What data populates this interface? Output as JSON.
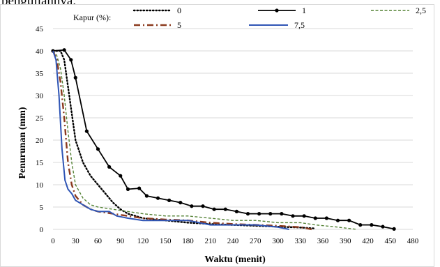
{
  "caption_fragment": "pengujiannya.",
  "chart_data": {
    "type": "line",
    "xlabel": "Waktu (menit)",
    "ylabel": "Penurunan (mm)",
    "xlim": [
      0,
      480
    ],
    "ylim": [
      0,
      45
    ],
    "x_ticks": [
      "0",
      "30",
      "60",
      "90",
      "120",
      "150",
      "180",
      "210",
      "240",
      "270",
      "300",
      "330",
      "360",
      "390",
      "420",
      "450",
      "480"
    ],
    "y_ticks": [
      "0",
      "5",
      "10",
      "15",
      "20",
      "25",
      "30",
      "35",
      "40",
      "45"
    ],
    "grid": "horizontal",
    "legend_title": "Kapur (%):",
    "legend_position": "top",
    "series": [
      {
        "name": "0",
        "color": "#000000",
        "style": "dotted",
        "points": [
          [
            0,
            40
          ],
          [
            10,
            40
          ],
          [
            15,
            38
          ],
          [
            20,
            32
          ],
          [
            25,
            26
          ],
          [
            30,
            20
          ],
          [
            40,
            15
          ],
          [
            50,
            12
          ],
          [
            60,
            10
          ],
          [
            70,
            8
          ],
          [
            80,
            6
          ],
          [
            90,
            4.5
          ],
          [
            100,
            3.5
          ],
          [
            120,
            2.5
          ],
          [
            150,
            2
          ],
          [
            180,
            1.5
          ],
          [
            210,
            1.2
          ],
          [
            240,
            1
          ],
          [
            270,
            0.8
          ],
          [
            300,
            0.6
          ],
          [
            330,
            0.4
          ],
          [
            350,
            0.2
          ]
        ]
      },
      {
        "name": "1",
        "color": "#000000",
        "style": "solid-markers",
        "points": [
          [
            0,
            40
          ],
          [
            15,
            40.2
          ],
          [
            24,
            38
          ],
          [
            30,
            34
          ],
          [
            45,
            22
          ],
          [
            60,
            18
          ],
          [
            75,
            14
          ],
          [
            90,
            12
          ],
          [
            100,
            9
          ],
          [
            115,
            9.2
          ],
          [
            125,
            7.5
          ],
          [
            140,
            7
          ],
          [
            155,
            6.5
          ],
          [
            170,
            6
          ],
          [
            185,
            5.2
          ],
          [
            200,
            5.2
          ],
          [
            215,
            4.5
          ],
          [
            230,
            4.5
          ],
          [
            245,
            4
          ],
          [
            260,
            3.5
          ],
          [
            275,
            3.5
          ],
          [
            290,
            3.5
          ],
          [
            305,
            3.5
          ],
          [
            320,
            3
          ],
          [
            335,
            3
          ],
          [
            350,
            2.5
          ],
          [
            365,
            2.5
          ],
          [
            380,
            2
          ],
          [
            395,
            2
          ],
          [
            410,
            1
          ],
          [
            425,
            1
          ],
          [
            440,
            0.6
          ],
          [
            455,
            0.1
          ]
        ]
      },
      {
        "name": "2,5",
        "color": "#548235",
        "style": "dashed",
        "points": [
          [
            0,
            40
          ],
          [
            5,
            39
          ],
          [
            10,
            36
          ],
          [
            15,
            30
          ],
          [
            20,
            22
          ],
          [
            25,
            15
          ],
          [
            30,
            10
          ],
          [
            40,
            7
          ],
          [
            50,
            5.5
          ],
          [
            60,
            5
          ],
          [
            80,
            4.5
          ],
          [
            100,
            4
          ],
          [
            120,
            3.5
          ],
          [
            150,
            3
          ],
          [
            180,
            3
          ],
          [
            210,
            2.5
          ],
          [
            240,
            2
          ],
          [
            270,
            2
          ],
          [
            300,
            1.5
          ],
          [
            330,
            1.5
          ],
          [
            350,
            1
          ],
          [
            380,
            0.5
          ],
          [
            405,
            0
          ]
        ]
      },
      {
        "name": "5",
        "color": "#8B3A1E",
        "style": "dashdot",
        "points": [
          [
            0,
            40
          ],
          [
            5,
            38
          ],
          [
            10,
            33
          ],
          [
            15,
            25
          ],
          [
            20,
            15
          ],
          [
            25,
            10
          ],
          [
            30,
            7.5
          ],
          [
            40,
            5.5
          ],
          [
            50,
            4.5
          ],
          [
            60,
            4
          ],
          [
            80,
            3.5
          ],
          [
            100,
            3
          ],
          [
            120,
            2.5
          ],
          [
            150,
            2.2
          ],
          [
            180,
            2
          ],
          [
            210,
            1.5
          ],
          [
            240,
            1.2
          ],
          [
            270,
            1
          ],
          [
            300,
            0.8
          ],
          [
            330,
            0.5
          ],
          [
            345,
            0
          ]
        ]
      },
      {
        "name": "7,5",
        "color": "#2F55B5",
        "style": "solid",
        "points": [
          [
            0,
            40
          ],
          [
            4,
            38
          ],
          [
            8,
            30
          ],
          [
            12,
            18
          ],
          [
            16,
            11
          ],
          [
            20,
            9
          ],
          [
            25,
            8
          ],
          [
            30,
            6.5
          ],
          [
            40,
            5.5
          ],
          [
            50,
            4.5
          ],
          [
            60,
            4
          ],
          [
            70,
            4
          ],
          [
            75,
            4
          ],
          [
            85,
            3
          ],
          [
            100,
            2.5
          ],
          [
            120,
            2
          ],
          [
            150,
            2
          ],
          [
            180,
            2
          ],
          [
            210,
            1
          ],
          [
            240,
            1
          ],
          [
            270,
            1
          ],
          [
            300,
            0.5
          ],
          [
            315,
            0
          ]
        ]
      }
    ]
  }
}
